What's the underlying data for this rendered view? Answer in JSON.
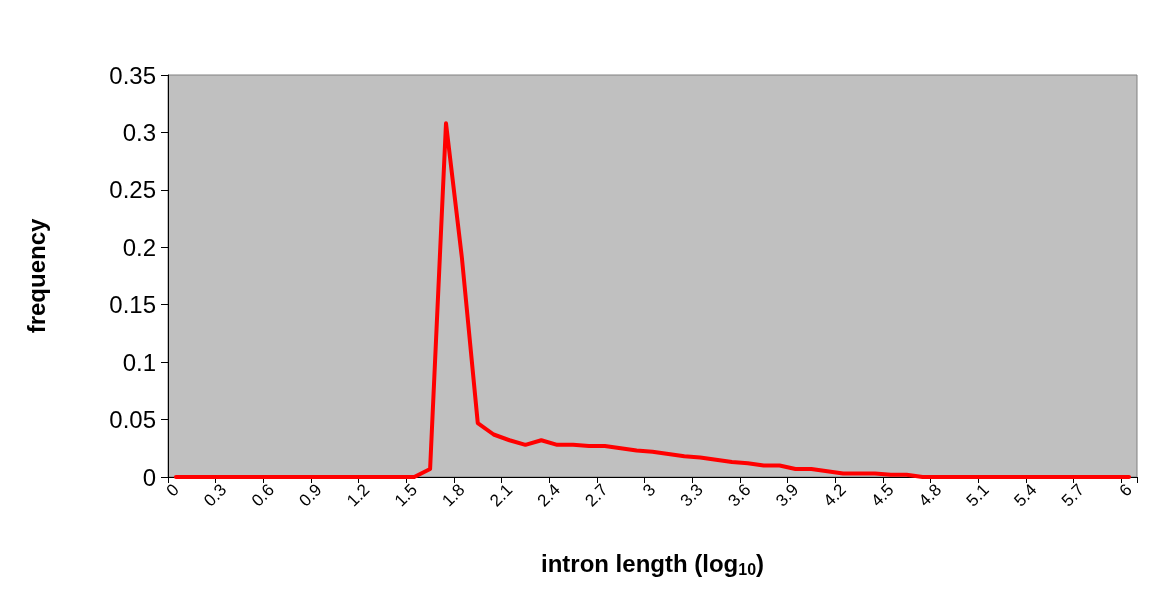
{
  "chart_data": {
    "type": "line",
    "xlabel": "intron length (log$_{10}$)",
    "ylabel": "frequency",
    "categories": [
      "0",
      null,
      null,
      "0.3",
      null,
      null,
      "0.6",
      null,
      null,
      "0.9",
      null,
      null,
      "1.2",
      null,
      null,
      "1.5",
      null,
      null,
      "1.8",
      null,
      null,
      "2.1",
      null,
      null,
      "2.4",
      null,
      null,
      "2.7",
      null,
      null,
      "3",
      null,
      null,
      "3.3",
      null,
      null,
      "3.6",
      null,
      null,
      "3.9",
      null,
      null,
      "4.2",
      null,
      null,
      "4.5",
      null,
      null,
      "4.8",
      null,
      null,
      "5.1",
      null,
      null,
      "5.4",
      null,
      null,
      "5.7",
      null,
      null,
      "6"
    ],
    "series": [
      {
        "color": "#ff0000",
        "values": [
          0,
          0,
          0,
          0,
          0,
          0,
          0,
          0,
          0,
          0,
          0,
          0,
          0,
          0,
          0,
          0,
          0.007,
          0.308,
          0.191,
          0.047,
          0.037,
          0.032,
          0.028,
          0.032,
          0.028,
          0.028,
          0.027,
          0.027,
          0.025,
          0.023,
          0.022,
          0.02,
          0.018,
          0.017,
          0.015,
          0.013,
          0.012,
          0.01,
          0.01,
          0.007,
          0.007,
          0.005,
          0.003,
          0.003,
          0.003,
          0.002,
          0.002,
          0,
          0,
          0,
          0,
          0,
          0,
          0,
          0,
          0,
          0,
          0,
          0,
          0,
          0
        ]
      }
    ],
    "ylim": [
      0,
      0.35
    ],
    "yticks": [
      0,
      0.05,
      0.1,
      0.15,
      0.2,
      0.25,
      0.3,
      0.35
    ],
    "grid": false,
    "marker": "none",
    "line_style": "solid"
  }
}
